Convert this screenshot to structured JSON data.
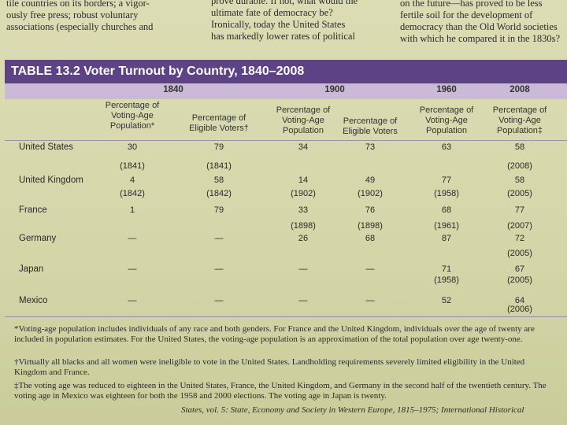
{
  "page_text": {
    "columns": [
      [
        "tile countries on its borders; a vigor-",
        "ously free press; robust voluntary",
        "associations (especially churches and"
      ],
      [
        "prove durable. If not, what would the",
        "ultimate fate of democracy be?",
        "Ironically, today the United States",
        "has markedly lower rates of political"
      ],
      [
        "on the future—has proved to be less",
        "fertile soil for the development of",
        "democracy than the Old World societies",
        "with which he compared it in the 1830s?"
      ]
    ]
  },
  "table": {
    "title": "TABLE 13.2 Voter Turnout by Country, 1840–2008",
    "years": [
      "1840",
      "1900",
      "1960",
      "2008"
    ],
    "headers": [
      "Percentage of Voting-Age Population*",
      "Percentage of Eligible Voters†",
      "Percentage of Voting-Age Population",
      "Percentage of Eligible Voters",
      "Percentage of Voting-Age Population",
      "Percentage of Voting-Age Population‡"
    ],
    "rows": [
      {
        "country": "United States",
        "values": [
          "30",
          "79",
          "34",
          "73",
          "63",
          "58"
        ],
        "years": [
          "(1841)",
          "(1841)",
          null,
          null,
          null,
          "(2008)"
        ]
      },
      {
        "country": "United Kingdom",
        "values": [
          "4",
          "58",
          "14",
          "49",
          "77",
          "58"
        ],
        "years": [
          "(1842)",
          "(1842)",
          "(1902)",
          "(1902)",
          "(1958)",
          "(2005)"
        ]
      },
      {
        "country": "France",
        "values": [
          "1",
          "79",
          "33",
          "76",
          "68",
          "77"
        ],
        "years": [
          null,
          null,
          "(1898)",
          "(1898)",
          "(1961)",
          "(2007)"
        ]
      },
      {
        "country": "Germany",
        "values": [
          "—",
          "—",
          "26",
          "68",
          "87",
          "72"
        ],
        "years": [
          null,
          null,
          null,
          null,
          null,
          "(2005)"
        ]
      },
      {
        "country": "Japan",
        "values": [
          "—",
          "—",
          "—",
          "—",
          "71",
          "67"
        ],
        "years": [
          null,
          null,
          null,
          null,
          "(1958)",
          "(2005)"
        ]
      },
      {
        "country": "Mexico",
        "values": [
          "—",
          "—",
          "—",
          "—",
          "52",
          "64"
        ],
        "years": [
          null,
          null,
          null,
          null,
          null,
          "(2006)"
        ]
      }
    ]
  },
  "footnotes": [
    "*Voting-age population includes individuals of any race and both genders. For France and the United Kingdom, individuals over the age of twenty are included in population estimates. For the United States, the voting-age population is an approximation of the total population over age twenty-one.",
    "†Virtually all blacks and all women were ineligible to vote in the United States. Landholding requirements severely limited eligibility in the United Kingdom and France.",
    "‡The voting age was reduced to eighteen in the United States, France, the United Kingdom, and Germany in the second half of the twentieth century. The voting age in Mexico was eighteen for both the 1958 and 2000 elections. The voting age in Japan is twenty.",
    "States, vol. 5: State, Economy and Society in Western Europe, 1815–1975; International Historical"
  ]
}
